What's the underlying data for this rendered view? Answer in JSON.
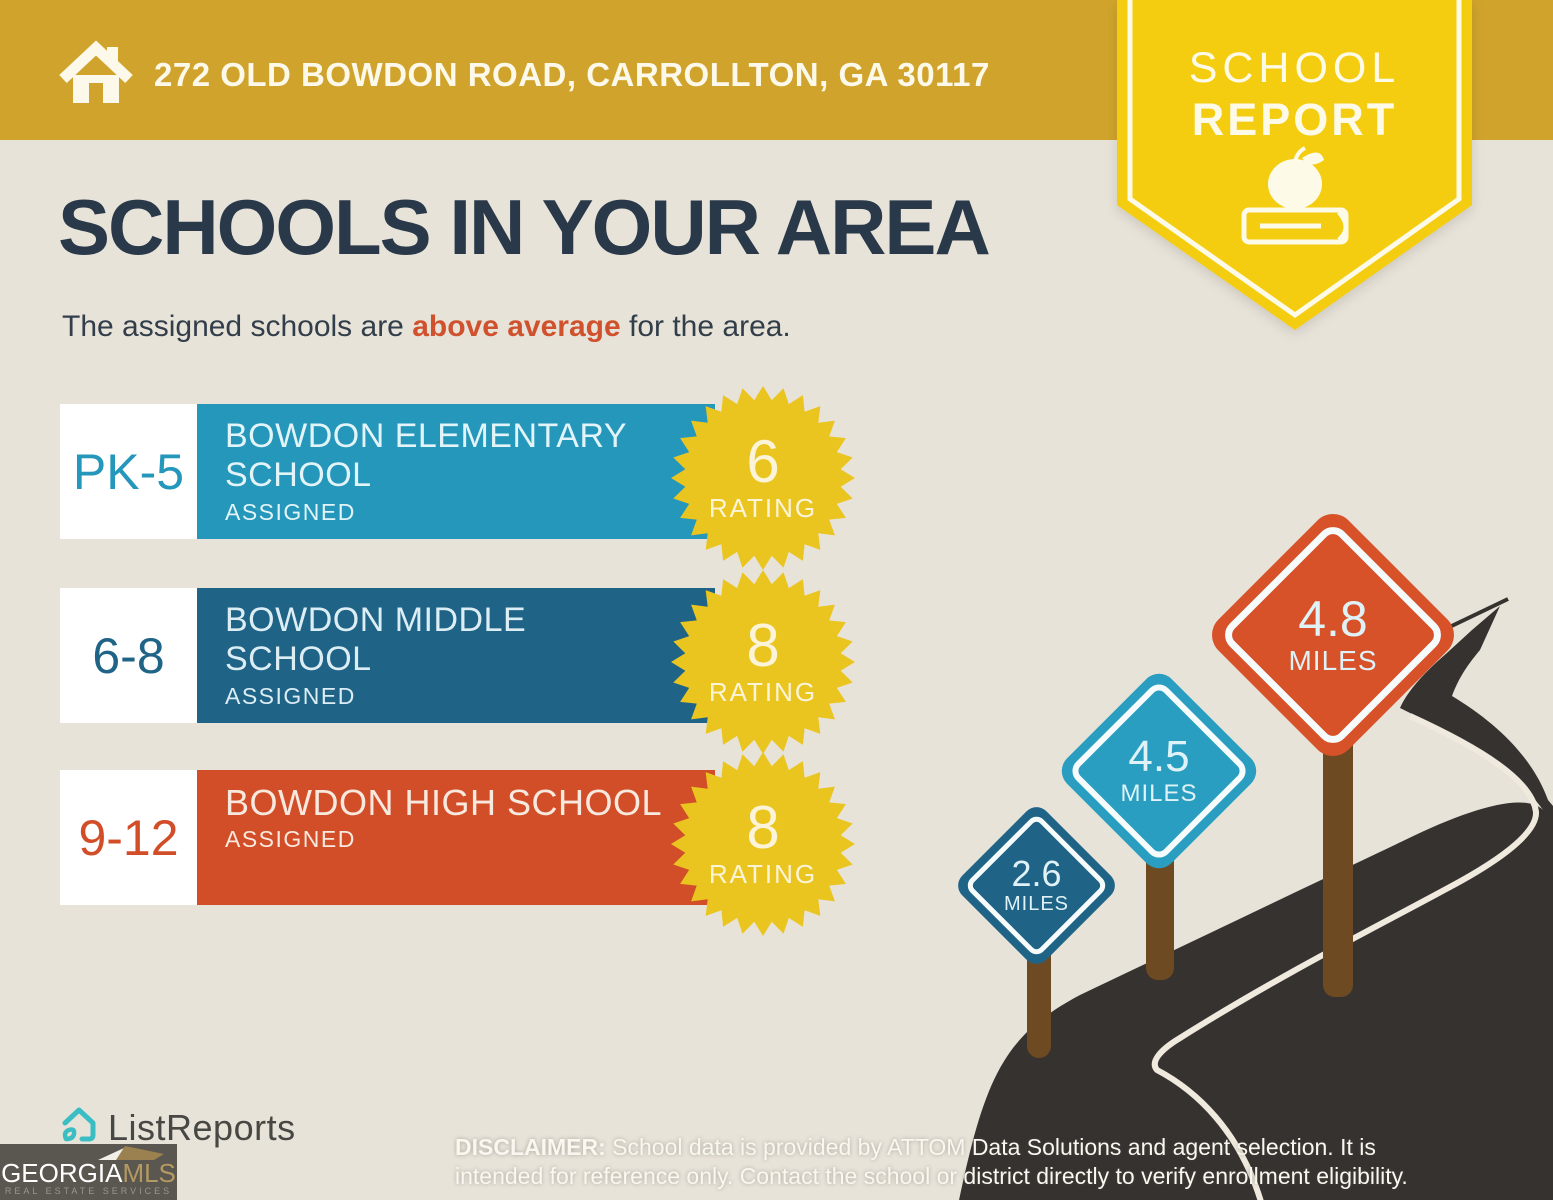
{
  "colors": {
    "banner-gold": "#D0A42C",
    "badge-yellow": "#F4CD10",
    "background": "#E8E3D9",
    "navy": "#2A3949",
    "accent-orange": "#D0512E",
    "elementary-teal": "#2497BA",
    "middle-blue": "#1F6387",
    "high-orange": "#D24E28",
    "star-yellow": "#EAC520",
    "road": "#363230",
    "road-line": "#EFE9DE",
    "post-brown": "#6E4A23",
    "sign-teal": "#2A9EC0",
    "sign-red": "#D75129",
    "cream": "#FDF9EA",
    "logo-teal": "#3ABEC3",
    "mls-gold": "#B49A62",
    "mls-box": "#5A5650"
  },
  "header": {
    "address": "272 OLD BOWDON ROAD, CARROLLTON, GA 30117",
    "badge_line1": "SCHOOL",
    "badge_line2": "REPORT"
  },
  "main": {
    "title": "SCHOOLS IN YOUR AREA",
    "subtitle_prefix": "The assigned schools are ",
    "subtitle_highlight": "above average",
    "subtitle_suffix": " for the area."
  },
  "schools": [
    {
      "grades": "PK-5",
      "name": "BOWDON ELEMENTARY SCHOOL",
      "name_line1": "BOWDON ELEMENTARY",
      "name_line2": "SCHOOL",
      "status": "ASSIGNED",
      "rating": "6",
      "rating_label": "RATING"
    },
    {
      "grades": "6-8",
      "name": "BOWDON MIDDLE SCHOOL",
      "name_line1": "BOWDON MIDDLE",
      "name_line2": "SCHOOL",
      "status": "ASSIGNED",
      "rating": "8",
      "rating_label": "RATING"
    },
    {
      "grades": "9-12",
      "name": "BOWDON HIGH SCHOOL",
      "name_line1": "BOWDON HIGH SCHOOL",
      "name_line2": "",
      "status": "ASSIGNED",
      "rating": "8",
      "rating_label": "RATING"
    }
  ],
  "signs": [
    {
      "value": "2.6",
      "unit": "MILES"
    },
    {
      "value": "4.5",
      "unit": "MILES"
    },
    {
      "value": "4.8",
      "unit": "MILES"
    }
  ],
  "footer": {
    "brand": "ListReports",
    "mls_name_primary": "GEORGIA",
    "mls_name_secondary": "MLS",
    "mls_tagline": "REAL ESTATE SERVICES",
    "disclaimer_label": "DISCLAIMER:",
    "disclaimer_text": " School data is provided by ATTOM Data Solutions and agent selection. It is intended for reference only. Contact the school or district directly to verify enrollment eligibility."
  }
}
